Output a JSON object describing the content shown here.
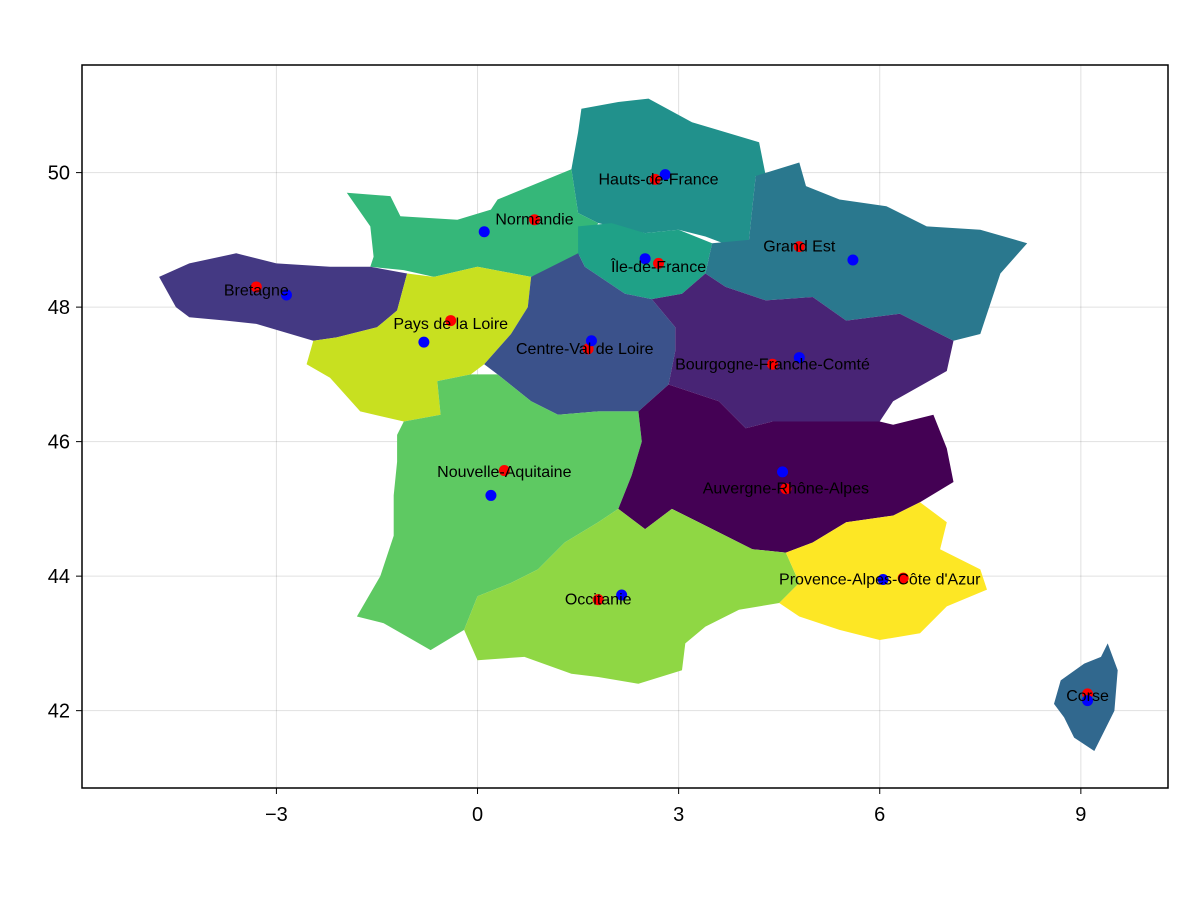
{
  "chart_data": {
    "type": "map",
    "title": "",
    "xlabel": "",
    "ylabel": "",
    "xlim": [
      -5.9,
      10.3
    ],
    "ylim": [
      40.85,
      51.6
    ],
    "xticks": [
      -3,
      0,
      3,
      6,
      9
    ],
    "xtick_labels": [
      "−3",
      "0",
      "3",
      "6",
      "9"
    ],
    "yticks": [
      42,
      44,
      46,
      48,
      50
    ],
    "ytick_labels": [
      "42",
      "44",
      "46",
      "48",
      "50"
    ],
    "grid": true,
    "marker_colors": {
      "red": "#ff0000",
      "blue": "#0000ff"
    },
    "regions": [
      {
        "name": "Hauts-de-France",
        "label_pos": [
          2.7,
          49.9
        ],
        "red": [
          2.65,
          49.9
        ],
        "blue": [
          2.8,
          49.97
        ],
        "color": "#21918c",
        "outline": [
          [
            1.4,
            50.05
          ],
          [
            1.5,
            50.6
          ],
          [
            1.55,
            50.95
          ],
          [
            2.1,
            51.05
          ],
          [
            2.55,
            51.1
          ],
          [
            3.2,
            50.75
          ],
          [
            4.2,
            50.45
          ],
          [
            4.3,
            49.95
          ],
          [
            4.15,
            49.95
          ],
          [
            4.05,
            49.0
          ],
          [
            3.8,
            48.9
          ],
          [
            3.4,
            49.05
          ],
          [
            3.0,
            49.15
          ],
          [
            2.5,
            49.1
          ],
          [
            1.8,
            49.25
          ],
          [
            1.5,
            49.4
          ],
          [
            1.4,
            50.05
          ]
        ]
      },
      {
        "name": "Normandie",
        "label_pos": [
          0.85,
          49.3
        ],
        "red": [
          0.85,
          49.3
        ],
        "blue": [
          0.1,
          49.12
        ],
        "color": "#35b779",
        "outline": [
          [
            -1.95,
            49.7
          ],
          [
            -1.3,
            49.65
          ],
          [
            -1.15,
            49.35
          ],
          [
            -0.3,
            49.3
          ],
          [
            0.2,
            49.45
          ],
          [
            0.3,
            49.6
          ],
          [
            1.4,
            50.05
          ],
          [
            1.5,
            49.4
          ],
          [
            1.8,
            49.25
          ],
          [
            1.5,
            48.75
          ],
          [
            1.2,
            48.6
          ],
          [
            0.8,
            48.45
          ],
          [
            0.0,
            48.6
          ],
          [
            -0.65,
            48.45
          ],
          [
            -1.1,
            48.55
          ],
          [
            -1.6,
            48.6
          ],
          [
            -1.55,
            48.75
          ],
          [
            -1.6,
            49.2
          ],
          [
            -1.95,
            49.7
          ]
        ]
      },
      {
        "name": "Île-de-France",
        "label_pos": [
          2.7,
          48.6
        ],
        "red": [
          2.7,
          48.65
        ],
        "blue": [
          2.5,
          48.72
        ],
        "color": "#1fa187",
        "outline": [
          [
            1.5,
            49.2
          ],
          [
            2.0,
            49.25
          ],
          [
            2.5,
            49.1
          ],
          [
            3.0,
            49.15
          ],
          [
            3.5,
            48.95
          ],
          [
            3.4,
            48.5
          ],
          [
            3.05,
            48.2
          ],
          [
            2.6,
            48.12
          ],
          [
            2.2,
            48.2
          ],
          [
            1.9,
            48.4
          ],
          [
            1.6,
            48.6
          ],
          [
            1.5,
            48.8
          ],
          [
            1.5,
            49.2
          ]
        ]
      },
      {
        "name": "Grand Est",
        "label_pos": [
          4.8,
          48.9
        ],
        "red": [
          4.8,
          48.9
        ],
        "blue": [
          5.6,
          48.7
        ],
        "color": "#2a788e",
        "outline": [
          [
            4.15,
            49.95
          ],
          [
            4.8,
            50.15
          ],
          [
            4.9,
            49.8
          ],
          [
            5.4,
            49.6
          ],
          [
            6.1,
            49.5
          ],
          [
            6.7,
            49.2
          ],
          [
            7.5,
            49.15
          ],
          [
            8.2,
            48.95
          ],
          [
            7.8,
            48.5
          ],
          [
            7.6,
            47.9
          ],
          [
            7.5,
            47.6
          ],
          [
            7.1,
            47.5
          ],
          [
            6.3,
            47.9
          ],
          [
            5.5,
            47.8
          ],
          [
            5.0,
            48.15
          ],
          [
            4.3,
            48.1
          ],
          [
            3.7,
            48.3
          ],
          [
            3.4,
            48.5
          ],
          [
            3.5,
            48.95
          ],
          [
            4.05,
            49.0
          ],
          [
            4.15,
            49.95
          ]
        ]
      },
      {
        "name": "Bretagne",
        "label_pos": [
          -3.3,
          48.25
        ],
        "red": [
          -3.3,
          48.3
        ],
        "blue": [
          -2.85,
          48.18
        ],
        "color": "#443983",
        "outline": [
          [
            -4.75,
            48.45
          ],
          [
            -4.3,
            48.65
          ],
          [
            -3.6,
            48.8
          ],
          [
            -3.0,
            48.65
          ],
          [
            -2.2,
            48.6
          ],
          [
            -1.6,
            48.6
          ],
          [
            -1.05,
            48.5
          ],
          [
            -1.2,
            47.95
          ],
          [
            -1.5,
            47.7
          ],
          [
            -2.1,
            47.55
          ],
          [
            -2.45,
            47.5
          ],
          [
            -3.3,
            47.75
          ],
          [
            -3.75,
            47.8
          ],
          [
            -4.3,
            47.85
          ],
          [
            -4.5,
            48.0
          ],
          [
            -4.75,
            48.45
          ]
        ]
      },
      {
        "name": "Pays de la Loire",
        "label_pos": [
          -0.4,
          47.75
        ],
        "red": [
          -0.4,
          47.8
        ],
        "blue": [
          -0.8,
          47.48
        ],
        "color": "#c8e020",
        "outline": [
          [
            -1.05,
            48.5
          ],
          [
            -0.65,
            48.45
          ],
          [
            0.0,
            48.6
          ],
          [
            0.8,
            48.45
          ],
          [
            0.75,
            48.0
          ],
          [
            0.5,
            47.6
          ],
          [
            0.1,
            47.15
          ],
          [
            -0.1,
            47.0
          ],
          [
            -0.6,
            46.9
          ],
          [
            -0.55,
            46.4
          ],
          [
            -1.1,
            46.3
          ],
          [
            -1.75,
            46.45
          ],
          [
            -2.2,
            46.95
          ],
          [
            -2.55,
            47.15
          ],
          [
            -2.45,
            47.5
          ],
          [
            -2.1,
            47.55
          ],
          [
            -1.5,
            47.7
          ],
          [
            -1.2,
            47.95
          ],
          [
            -1.05,
            48.5
          ]
        ]
      },
      {
        "name": "Centre-Val de Loire",
        "label_pos": [
          1.6,
          47.38
        ],
        "red": [
          1.65,
          47.38
        ],
        "blue": [
          1.7,
          47.5
        ],
        "color": "#3b528b",
        "outline": [
          [
            0.8,
            48.45
          ],
          [
            1.5,
            48.8
          ],
          [
            1.6,
            48.6
          ],
          [
            1.9,
            48.4
          ],
          [
            2.2,
            48.2
          ],
          [
            2.6,
            48.12
          ],
          [
            2.95,
            47.7
          ],
          [
            2.95,
            47.35
          ],
          [
            2.85,
            46.85
          ],
          [
            2.4,
            46.45
          ],
          [
            1.8,
            46.45
          ],
          [
            1.2,
            46.4
          ],
          [
            0.8,
            46.6
          ],
          [
            0.3,
            47.0
          ],
          [
            0.1,
            47.15
          ],
          [
            0.5,
            47.6
          ],
          [
            0.75,
            48.0
          ],
          [
            0.8,
            48.45
          ]
        ]
      },
      {
        "name": "Bourgogne-Franche-Comté",
        "label_pos": [
          4.4,
          47.15
        ],
        "red": [
          4.4,
          47.15
        ],
        "blue": [
          4.8,
          47.25
        ],
        "color": "#482475",
        "outline": [
          [
            3.05,
            48.2
          ],
          [
            3.4,
            48.5
          ],
          [
            3.7,
            48.3
          ],
          [
            4.3,
            48.1
          ],
          [
            5.0,
            48.15
          ],
          [
            5.5,
            47.8
          ],
          [
            6.3,
            47.9
          ],
          [
            7.1,
            47.5
          ],
          [
            7.0,
            47.05
          ],
          [
            6.2,
            46.6
          ],
          [
            6.0,
            46.3
          ],
          [
            5.4,
            46.3
          ],
          [
            4.9,
            46.3
          ],
          [
            4.4,
            46.3
          ],
          [
            4.0,
            46.2
          ],
          [
            3.6,
            46.6
          ],
          [
            2.85,
            46.85
          ],
          [
            2.95,
            47.35
          ],
          [
            2.95,
            47.7
          ],
          [
            2.6,
            48.12
          ],
          [
            3.05,
            48.2
          ]
        ]
      },
      {
        "name": "Nouvelle-Aquitaine",
        "label_pos": [
          0.4,
          45.55
        ],
        "red": [
          0.4,
          45.57
        ],
        "blue": [
          0.2,
          45.2
        ],
        "color": "#5ec962",
        "outline": [
          [
            -1.1,
            46.3
          ],
          [
            -0.55,
            46.4
          ],
          [
            -0.6,
            46.9
          ],
          [
            -0.1,
            47.0
          ],
          [
            0.3,
            47.0
          ],
          [
            0.8,
            46.6
          ],
          [
            1.2,
            46.4
          ],
          [
            1.8,
            46.45
          ],
          [
            2.4,
            46.45
          ],
          [
            2.45,
            46.0
          ],
          [
            2.3,
            45.5
          ],
          [
            2.1,
            45.0
          ],
          [
            1.8,
            44.8
          ],
          [
            1.3,
            44.5
          ],
          [
            0.9,
            44.1
          ],
          [
            0.5,
            43.9
          ],
          [
            0.0,
            43.7
          ],
          [
            -0.2,
            43.2
          ],
          [
            -0.7,
            42.9
          ],
          [
            -1.4,
            43.3
          ],
          [
            -1.8,
            43.4
          ],
          [
            -1.45,
            44.0
          ],
          [
            -1.25,
            44.6
          ],
          [
            -1.25,
            45.2
          ],
          [
            -1.2,
            45.7
          ],
          [
            -1.2,
            46.1
          ],
          [
            -1.1,
            46.3
          ]
        ]
      },
      {
        "name": "Auvergne-Rhône-Alpes",
        "label_pos": [
          4.6,
          45.3
        ],
        "red": [
          4.6,
          45.3
        ],
        "blue": [
          4.55,
          45.55
        ],
        "color": "#440154",
        "outline": [
          [
            2.4,
            46.45
          ],
          [
            2.85,
            46.85
          ],
          [
            3.6,
            46.6
          ],
          [
            4.0,
            46.2
          ],
          [
            4.4,
            46.3
          ],
          [
            4.9,
            46.3
          ],
          [
            5.4,
            46.3
          ],
          [
            6.0,
            46.3
          ],
          [
            6.2,
            46.25
          ],
          [
            6.8,
            46.4
          ],
          [
            7.0,
            45.9
          ],
          [
            7.1,
            45.4
          ],
          [
            6.6,
            45.1
          ],
          [
            6.2,
            44.9
          ],
          [
            5.5,
            44.8
          ],
          [
            5.0,
            44.5
          ],
          [
            4.6,
            44.35
          ],
          [
            4.1,
            44.4
          ],
          [
            3.3,
            44.8
          ],
          [
            2.9,
            45.0
          ],
          [
            2.5,
            44.7
          ],
          [
            2.1,
            45.0
          ],
          [
            2.3,
            45.5
          ],
          [
            2.45,
            46.0
          ],
          [
            2.4,
            46.45
          ]
        ]
      },
      {
        "name": "Occitanie",
        "label_pos": [
          1.8,
          43.65
        ],
        "red": [
          1.8,
          43.65
        ],
        "blue": [
          2.15,
          43.72
        ],
        "color": "#8fd744",
        "outline": [
          [
            -0.2,
            43.2
          ],
          [
            0.0,
            43.7
          ],
          [
            0.5,
            43.9
          ],
          [
            0.9,
            44.1
          ],
          [
            1.3,
            44.5
          ],
          [
            1.8,
            44.8
          ],
          [
            2.1,
            45.0
          ],
          [
            2.5,
            44.7
          ],
          [
            2.9,
            45.0
          ],
          [
            3.3,
            44.8
          ],
          [
            4.1,
            44.4
          ],
          [
            4.6,
            44.35
          ],
          [
            4.8,
            43.9
          ],
          [
            4.5,
            43.6
          ],
          [
            3.9,
            43.5
          ],
          [
            3.4,
            43.25
          ],
          [
            3.1,
            43.0
          ],
          [
            3.05,
            42.6
          ],
          [
            2.4,
            42.4
          ],
          [
            1.8,
            42.5
          ],
          [
            1.4,
            42.55
          ],
          [
            0.7,
            42.8
          ],
          [
            0.0,
            42.75
          ],
          [
            -0.2,
            43.2
          ]
        ]
      },
      {
        "name": "Provence-Alpes-Côte d'Azur",
        "label_pos": [
          6.0,
          43.95
        ],
        "red": [
          6.35,
          43.97
        ],
        "blue": [
          6.05,
          43.95
        ],
        "color": "#fde725",
        "outline": [
          [
            4.6,
            44.35
          ],
          [
            5.0,
            44.5
          ],
          [
            5.5,
            44.8
          ],
          [
            6.2,
            44.9
          ],
          [
            6.6,
            45.1
          ],
          [
            7.0,
            44.8
          ],
          [
            6.9,
            44.4
          ],
          [
            7.5,
            44.1
          ],
          [
            7.6,
            43.8
          ],
          [
            7.0,
            43.55
          ],
          [
            6.6,
            43.15
          ],
          [
            6.0,
            43.05
          ],
          [
            5.4,
            43.2
          ],
          [
            4.8,
            43.4
          ],
          [
            4.5,
            43.6
          ],
          [
            4.8,
            43.9
          ],
          [
            4.6,
            44.35
          ]
        ]
      },
      {
        "name": "Corse",
        "label_pos": [
          9.1,
          42.22
        ],
        "red": [
          9.1,
          42.25
        ],
        "blue": [
          9.1,
          42.15
        ],
        "color": "#31688e",
        "outline": [
          [
            9.4,
            43.0
          ],
          [
            9.55,
            42.6
          ],
          [
            9.5,
            42.0
          ],
          [
            9.3,
            41.6
          ],
          [
            9.2,
            41.4
          ],
          [
            8.9,
            41.6
          ],
          [
            8.75,
            41.9
          ],
          [
            8.6,
            42.1
          ],
          [
            8.7,
            42.45
          ],
          [
            9.05,
            42.7
          ],
          [
            9.3,
            42.8
          ],
          [
            9.4,
            43.0
          ]
        ]
      }
    ]
  }
}
